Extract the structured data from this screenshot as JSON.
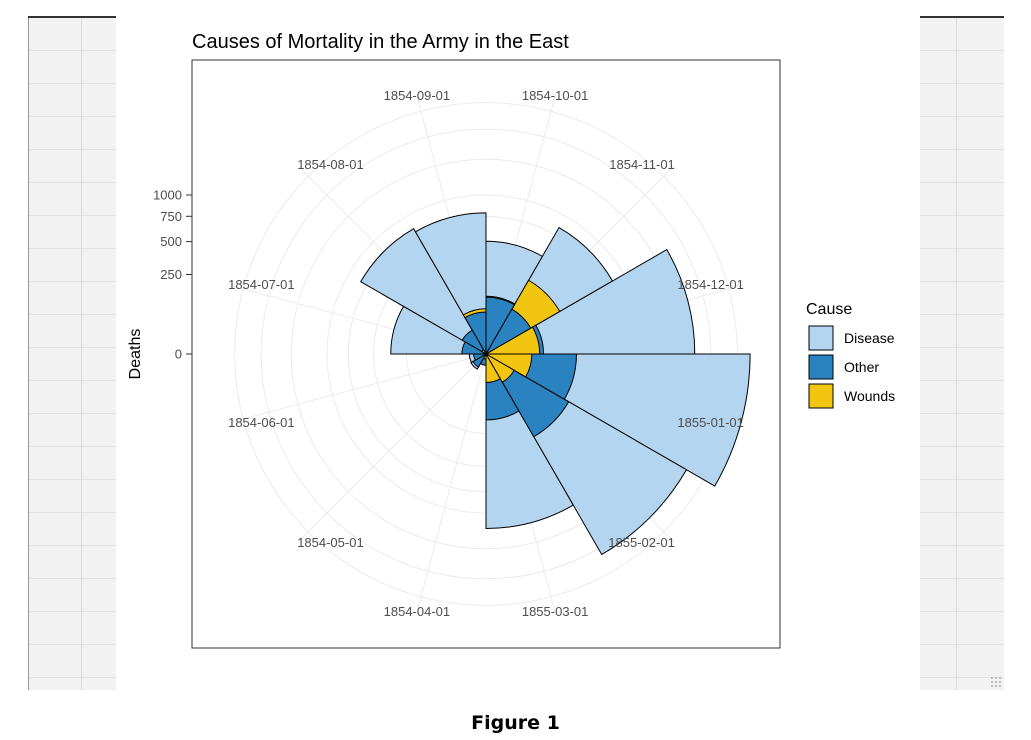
{
  "caption": "Figure 1",
  "chart_data": {
    "type": "polar-area",
    "title": "Causes of Mortality in the Army in the East",
    "ylabel": "Deaths",
    "scale": "sqrt",
    "y_ticks": [
      0,
      250,
      500,
      750,
      1000
    ],
    "month_labels": [
      "1854-04-01",
      "1854-05-01",
      "1854-06-01",
      "1854-07-01",
      "1854-08-01",
      "1854-09-01",
      "1854-10-01",
      "1854-11-01",
      "1854-12-01",
      "1855-01-01",
      "1855-02-01",
      "1855-03-01"
    ],
    "legend": {
      "title": "Cause",
      "position": "right",
      "items": [
        {
          "label": "Disease",
          "color": "#b3d5ef"
        },
        {
          "label": "Other",
          "color": "#2a82c0"
        },
        {
          "label": "Wounds",
          "color": "#f2c511"
        }
      ]
    },
    "series": [
      {
        "name": "Disease",
        "color": "#b3d5ef",
        "values": [
          1,
          12,
          11,
          359,
          828,
          788,
          503,
          844,
          1725,
          2761,
          2120,
          1205
        ]
      },
      {
        "name": "Other",
        "color": "#2a82c0",
        "values": [
          5,
          9,
          6,
          23,
          30,
          70,
          128,
          106,
          131,
          324,
          361,
          172
        ]
      },
      {
        "name": "Wounds",
        "color": "#f2c511",
        "values": [
          0,
          0,
          0,
          0,
          1,
          81,
          132,
          287,
          114,
          83,
          42,
          32
        ]
      }
    ]
  }
}
